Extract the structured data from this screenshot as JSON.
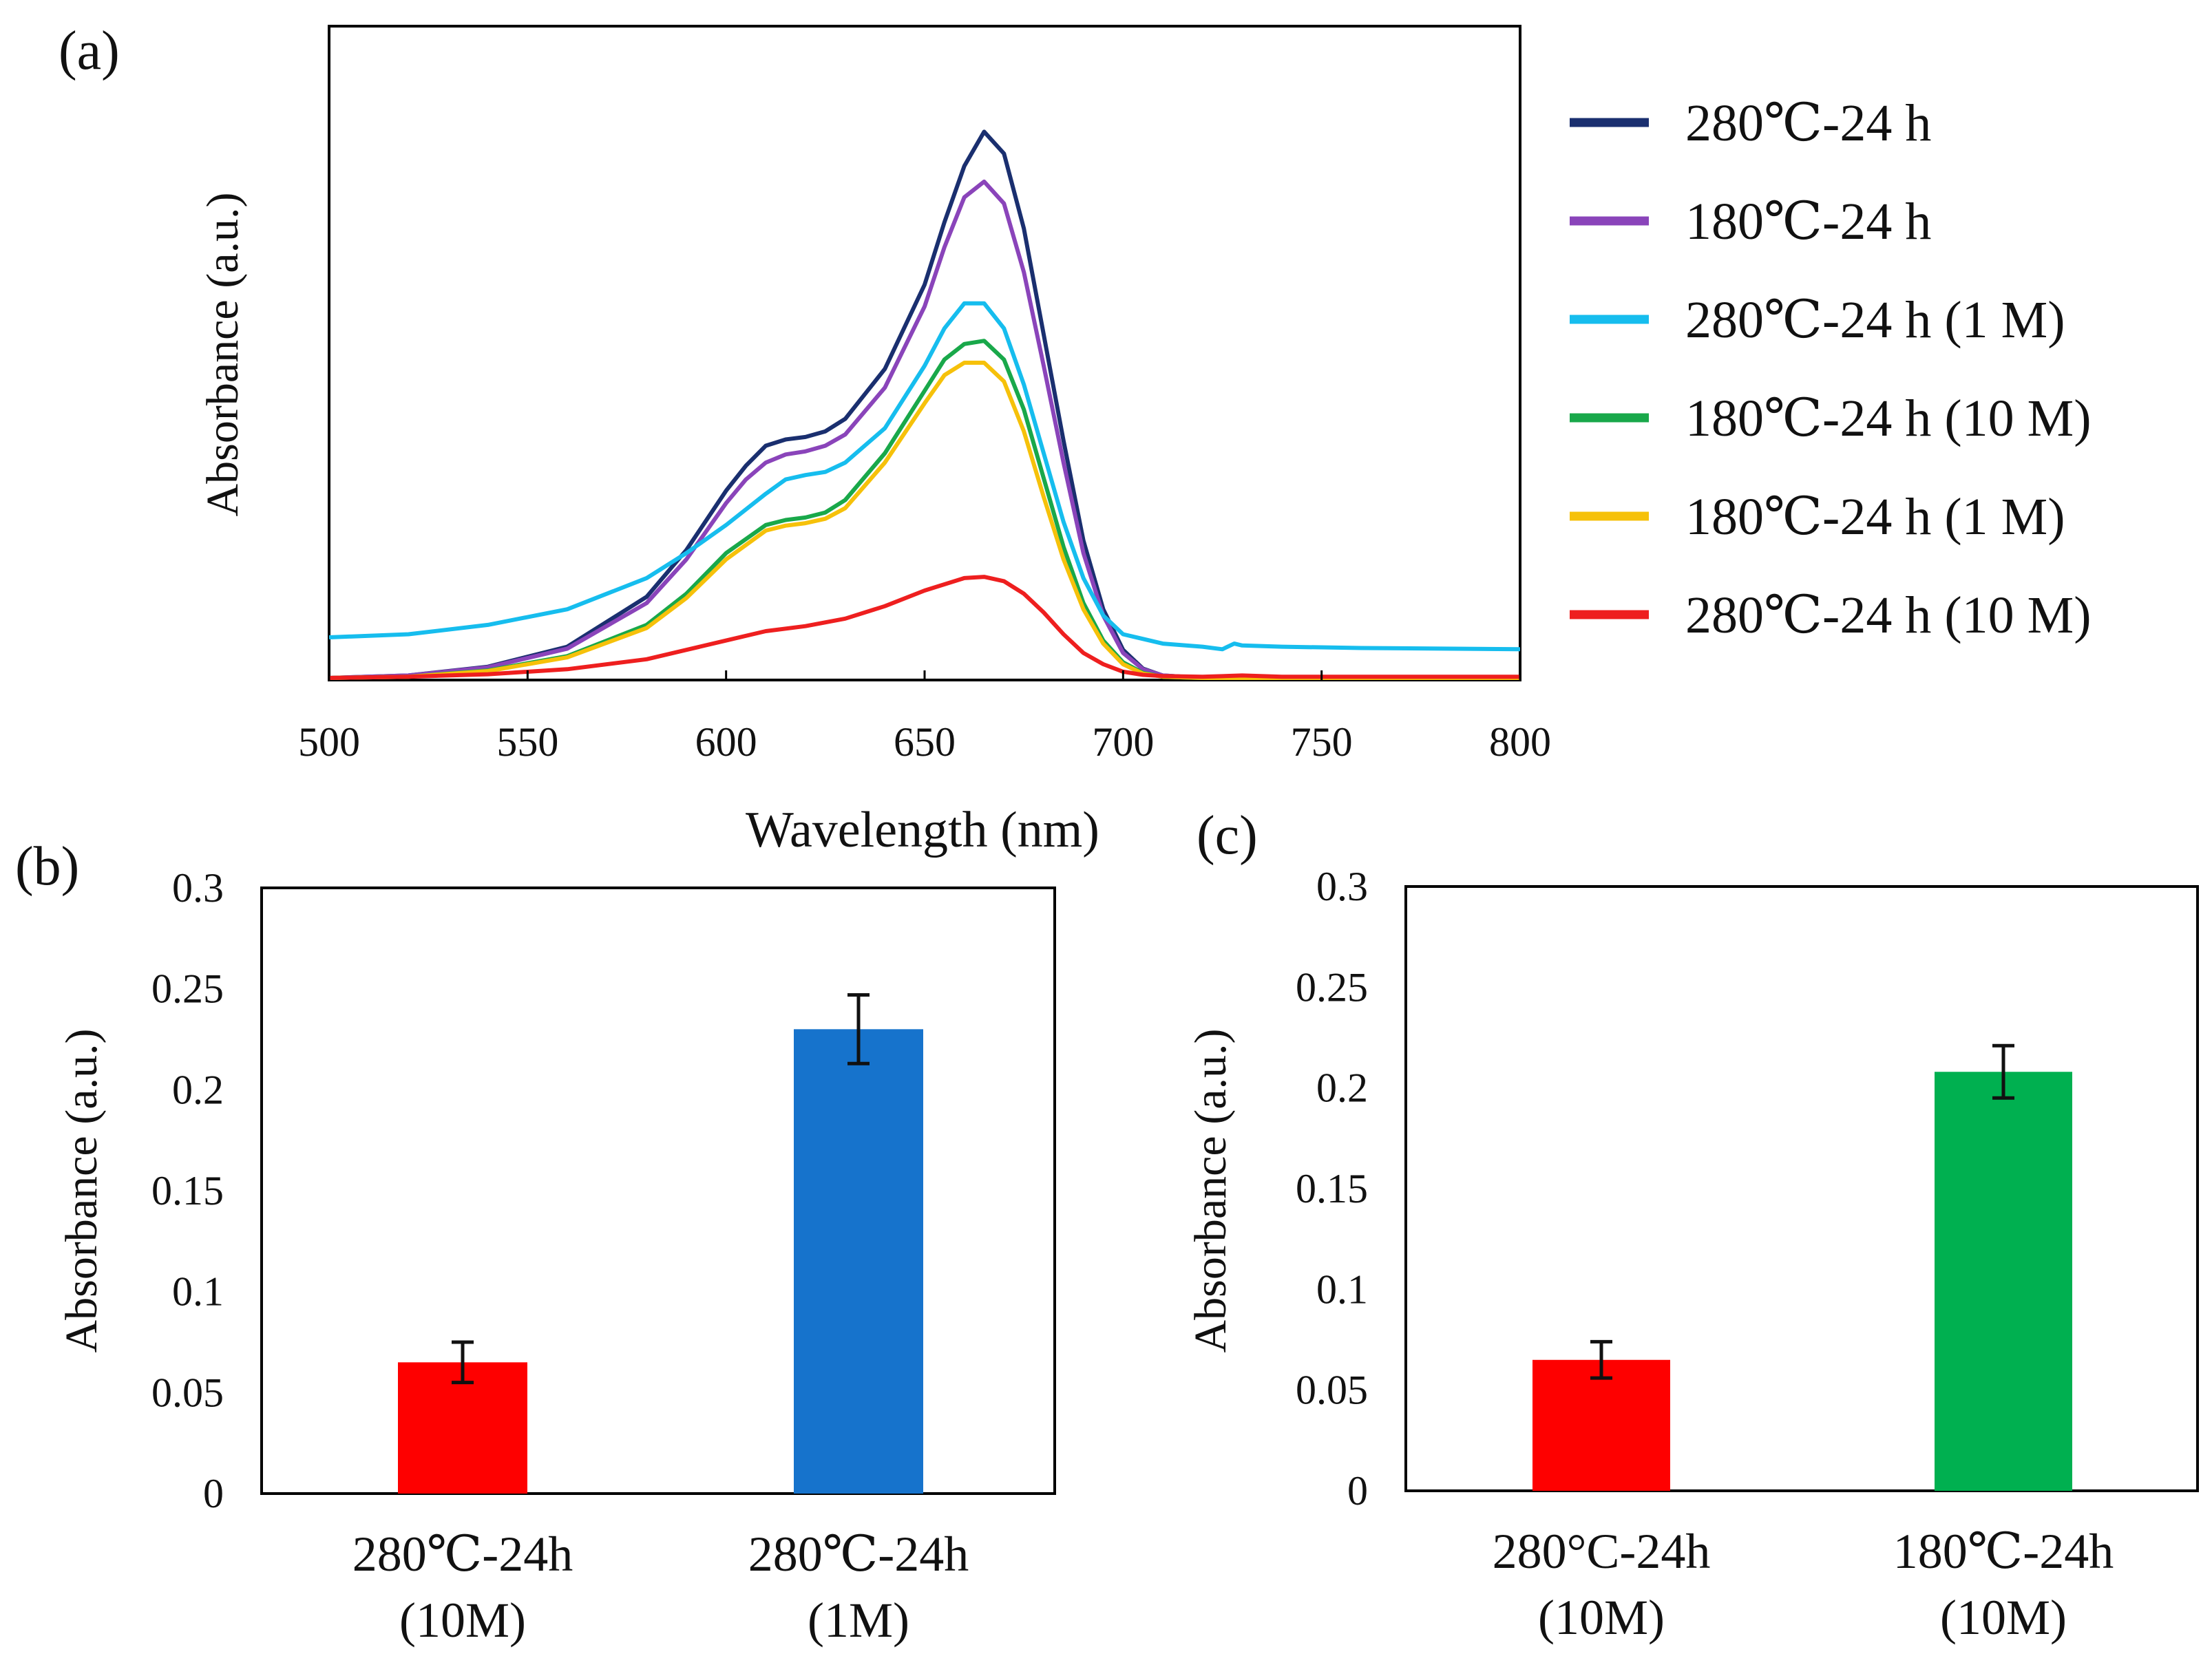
{
  "chart_data": [
    {
      "panel_label": "(a)",
      "type": "line",
      "xlabel": "Wavelength  (nm)",
      "ylabel": "Absorbance (a.u.)",
      "xlim": [
        500,
        800
      ],
      "x_ticks": [
        "500",
        "550",
        "600",
        "650",
        "700",
        "750",
        "800"
      ],
      "ylim": [
        0,
        1
      ],
      "y_ticks_shown": false,
      "legend_position": "right",
      "series": [
        {
          "name": "280℃-24 h",
          "color": "#1a2f6f",
          "x": [
            500,
            520,
            540,
            560,
            580,
            590,
            600,
            605,
            610,
            615,
            620,
            625,
            630,
            640,
            650,
            655,
            660,
            665,
            670,
            675,
            680,
            685,
            690,
            695,
            700,
            705,
            710,
            720,
            740,
            760,
            800
          ],
          "y": [
            0.0,
            0.004,
            0.018,
            0.05,
            0.13,
            0.205,
            0.3,
            0.34,
            0.372,
            0.382,
            0.386,
            0.395,
            0.415,
            0.495,
            0.63,
            0.73,
            0.82,
            0.875,
            0.84,
            0.72,
            0.55,
            0.38,
            0.22,
            0.11,
            0.045,
            0.015,
            0.004,
            0.0,
            0.0,
            0.0,
            0.0
          ]
        },
        {
          "name": "180℃-24 h",
          "color": "#8a44ba",
          "x": [
            500,
            520,
            540,
            560,
            580,
            590,
            600,
            605,
            610,
            615,
            620,
            625,
            630,
            640,
            650,
            655,
            660,
            665,
            670,
            675,
            680,
            685,
            690,
            695,
            700,
            705,
            710,
            720,
            740,
            760,
            800
          ],
          "y": [
            0.0,
            0.004,
            0.017,
            0.047,
            0.12,
            0.19,
            0.28,
            0.318,
            0.345,
            0.358,
            0.363,
            0.372,
            0.39,
            0.465,
            0.595,
            0.69,
            0.77,
            0.795,
            0.76,
            0.65,
            0.5,
            0.345,
            0.2,
            0.1,
            0.04,
            0.014,
            0.004,
            0.0,
            0.0,
            0.0,
            0.0
          ]
        },
        {
          "name": "280℃-24 h (1 M)",
          "color": "#16bdee",
          "x": [
            500,
            520,
            540,
            560,
            580,
            590,
            600,
            610,
            615,
            620,
            625,
            630,
            640,
            650,
            655,
            660,
            665,
            670,
            675,
            680,
            685,
            690,
            695,
            700,
            710,
            720,
            725,
            728,
            730,
            740,
            760,
            800
          ],
          "y": [
            0.065,
            0.07,
            0.085,
            0.11,
            0.16,
            0.2,
            0.245,
            0.295,
            0.318,
            0.325,
            0.33,
            0.345,
            0.4,
            0.5,
            0.56,
            0.6,
            0.6,
            0.56,
            0.47,
            0.36,
            0.25,
            0.16,
            0.1,
            0.07,
            0.055,
            0.05,
            0.046,
            0.055,
            0.052,
            0.05,
            0.048,
            0.046
          ]
        },
        {
          "name": "180℃-24 h (10 M)",
          "color": "#19a84a",
          "x": [
            500,
            520,
            540,
            560,
            580,
            590,
            600,
            610,
            615,
            620,
            625,
            630,
            640,
            650,
            655,
            660,
            665,
            670,
            675,
            680,
            685,
            690,
            695,
            700,
            705,
            710,
            720,
            740,
            760,
            800
          ],
          "y": [
            0.0,
            0.002,
            0.012,
            0.035,
            0.085,
            0.135,
            0.2,
            0.245,
            0.253,
            0.257,
            0.265,
            0.285,
            0.36,
            0.46,
            0.51,
            0.535,
            0.54,
            0.51,
            0.43,
            0.32,
            0.21,
            0.12,
            0.06,
            0.025,
            0.008,
            0.002,
            0.0,
            0.0,
            0.0,
            0.0
          ]
        },
        {
          "name": "180℃-24 h (1 M)",
          "color": "#f6c10a",
          "x": [
            500,
            520,
            540,
            560,
            580,
            590,
            600,
            610,
            615,
            620,
            625,
            630,
            640,
            650,
            655,
            660,
            665,
            670,
            675,
            680,
            685,
            690,
            695,
            700,
            705,
            710,
            720,
            740,
            760,
            800
          ],
          "y": [
            0.0,
            0.002,
            0.011,
            0.033,
            0.08,
            0.128,
            0.19,
            0.236,
            0.244,
            0.248,
            0.255,
            0.272,
            0.345,
            0.44,
            0.485,
            0.505,
            0.505,
            0.475,
            0.395,
            0.29,
            0.19,
            0.11,
            0.055,
            0.022,
            0.007,
            0.002,
            0.0,
            0.0,
            0.0,
            0.0
          ]
        },
        {
          "name": "280℃-24 h (10 M)",
          "color": "#ee1f1f",
          "x": [
            500,
            520,
            540,
            560,
            580,
            590,
            600,
            610,
            620,
            630,
            640,
            650,
            660,
            665,
            670,
            675,
            680,
            685,
            690,
            695,
            700,
            705,
            710,
            720,
            730,
            740,
            760,
            800
          ],
          "y": [
            0.0,
            0.002,
            0.006,
            0.014,
            0.03,
            0.045,
            0.06,
            0.075,
            0.083,
            0.095,
            0.115,
            0.14,
            0.16,
            0.162,
            0.155,
            0.135,
            0.105,
            0.07,
            0.04,
            0.022,
            0.01,
            0.005,
            0.003,
            0.002,
            0.004,
            0.002,
            0.002,
            0.002
          ]
        }
      ]
    },
    {
      "panel_label": "(b)",
      "type": "bar",
      "ylabel": "Absorbance (a.u.)",
      "ylim": [
        0,
        0.3
      ],
      "y_ticks": [
        "0",
        "0.05",
        "0.1",
        "0.15",
        "0.2",
        "0.25",
        "0.3"
      ],
      "categories": [
        [
          "280℃-24h",
          "(10M)"
        ],
        [
          "280℃-24h",
          "(1M)"
        ]
      ],
      "values": [
        0.065,
        0.23
      ],
      "errors": [
        0.01,
        0.017
      ],
      "colors": [
        "#fe0000",
        "#1673cc"
      ]
    },
    {
      "panel_label": "(c)",
      "type": "bar",
      "ylabel": "Absorbance (a.u.)",
      "ylim": [
        0,
        0.3
      ],
      "y_ticks": [
        "0",
        "0.05",
        "0.1",
        "0.15",
        "0.2",
        "0.25",
        "0.3"
      ],
      "categories": [
        [
          "280°C-24h",
          "(10M)"
        ],
        [
          "180℃-24h",
          "(10M)"
        ]
      ],
      "values": [
        0.065,
        0.208
      ],
      "errors": [
        0.009,
        0.013
      ],
      "colors": [
        "#fe0000",
        "#00b050"
      ]
    }
  ]
}
